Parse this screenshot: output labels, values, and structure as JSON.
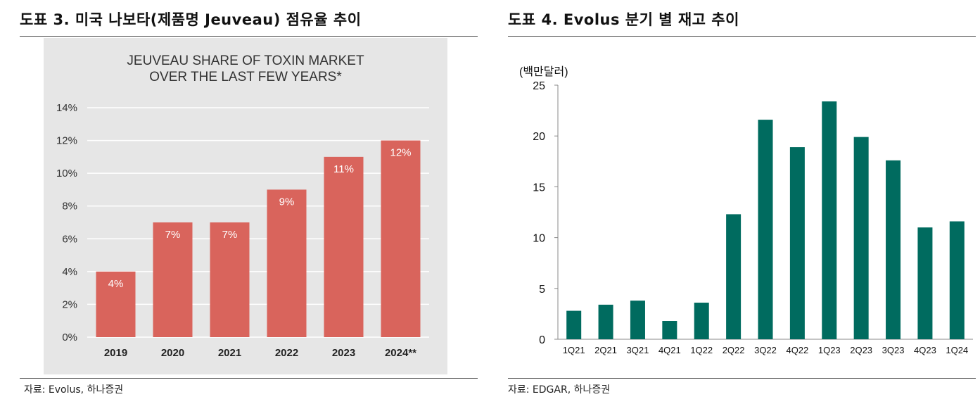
{
  "left": {
    "figure_title": "도표 3. 미국 나보타(제품명 Jeuveau) 점유율 추이",
    "source": "자료: Evolus, 하나증권"
  },
  "right": {
    "figure_title": "도표 4. Evolus 분기 별 재고 추이",
    "source": "자료: EDGAR, 하나증권"
  },
  "chart_data": [
    {
      "type": "bar",
      "title_line1": "JEUVEAU SHARE OF TOXIN MARKET",
      "title_line2": "OVER THE LAST FEW YEARS*",
      "categories": [
        "2019",
        "2020",
        "2021",
        "2022",
        "2023",
        "2024**"
      ],
      "values": [
        4,
        7,
        7,
        9,
        11,
        12
      ],
      "data_labels": [
        "4%",
        "7%",
        "7%",
        "9%",
        "11%",
        "12%"
      ],
      "ylim": [
        0,
        14
      ],
      "yticks": [
        0,
        2,
        4,
        6,
        8,
        10,
        12,
        14
      ],
      "ytick_labels": [
        "0%",
        "2%",
        "4%",
        "6%",
        "8%",
        "10%",
        "12%",
        "14%"
      ],
      "bar_color": "#d9645c",
      "background": "#e6e6e6",
      "grid": true
    },
    {
      "type": "bar",
      "ylabel": "(백만달러)",
      "categories": [
        "1Q21",
        "2Q21",
        "3Q21",
        "4Q21",
        "1Q22",
        "2Q22",
        "3Q22",
        "4Q22",
        "1Q23",
        "2Q23",
        "3Q23",
        "4Q23",
        "1Q24"
      ],
      "values": [
        2.8,
        3.4,
        3.8,
        1.8,
        3.6,
        12.3,
        21.6,
        18.9,
        23.4,
        19.9,
        17.6,
        11.0,
        11.6
      ],
      "ylim": [
        0,
        25
      ],
      "yticks": [
        0,
        5,
        10,
        15,
        20,
        25
      ],
      "ytick_labels": [
        "0",
        "5",
        "10",
        "15",
        "20",
        "25"
      ],
      "bar_color": "#006b5f",
      "grid": false
    }
  ]
}
